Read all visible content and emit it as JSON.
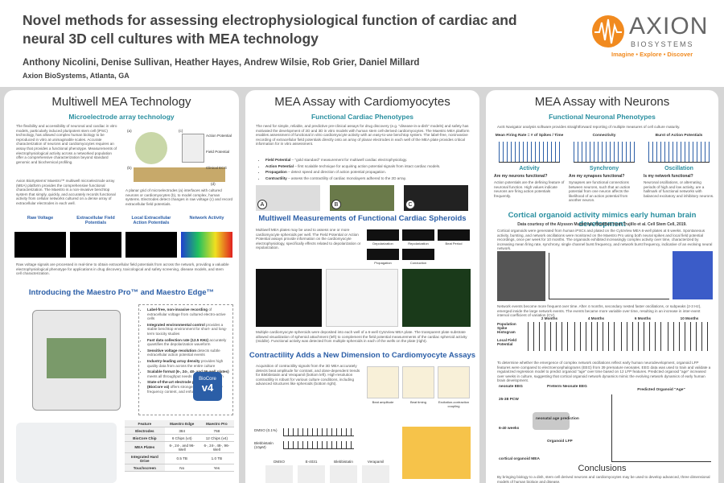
{
  "header": {
    "title": "Novel methods for assessing electrophysiological function of cardiac and neural 3D cell cultures with MEA technology",
    "authors": "Anthony Nicolini, Denise Sullivan, Heather Hayes, Andrew Wilsie, Rob Grier, Daniel Millard",
    "affiliation": "Axion BioSystems, Atlanta, GA",
    "logo_name": "AXION",
    "logo_sub": "BIOSYSTEMS",
    "tagline": "Imagine • Explore • Discover"
  },
  "col1": {
    "heading": "Multiwell MEA Technology",
    "sub": "Microelectrode array technology",
    "p1": "The flexibility and accessibility of neuronal and cardiac in vitro models, particularly induced pluripotent stem cell (iPSC) technology, has allowed complex human biology to be reproduced in vitro at unimaginable scales. Accurate characterization of neurons and cardiomyocytes requires an assay that provides a functional phenotype. Measurements of electrophysiological activity across a networked population offer a comprehensive characterization beyond standard genomic and biochemical profiling.",
    "p2": "Axion BioSystems' Maestro™ multiwell microelectrode array (MEA) platform provides the comprehensive functional characterization. The Maestro is a non-invasive benchtop system that simply, quickly, and accurately records functional activity from cellular networks cultured on a dense array of extracellular electrodes in each well.",
    "fig_labels": [
      "(a)",
      "(b)",
      "(c)",
      "(d)",
      "Action Potential",
      "Field Potential",
      "Clinical ECG"
    ],
    "fig_caption": "A planar grid of microelectrodes (a) interfaces with cultured neurons or cardiomyocytes (b), to model complex, human systems. Electrodes detect changes in raw voltage (c) and record extracellular field potentials.",
    "panels": [
      "Raw Voltage",
      "Extracellular Field Potentials",
      "Local Extracellular Action Potentials",
      "Network Activity"
    ],
    "panel_caption": "Raw voltage signals are processed in real-time to obtain extracellular field potentials from across the network, providing a valuable electrophysiological phenotype for applications in drug discovery, toxicological and safety screening, disease models, and stem cell characterization.",
    "maestro_heading": "Introducing the Maestro Pro™ and Maestro Edge™",
    "bullets": [
      {
        "lead": "Label-free, non-invasive recording",
        "text": " of extracellular voltage from cultured electro-active cells"
      },
      {
        "lead": "Integrated environmental control",
        "text": " provides a stable benchtop environment for short- and long-term toxicity studies"
      },
      {
        "lead": "Fast data collection rate (12.5 KHz)",
        "text": " accurately quantifies the depolarization waveform"
      },
      {
        "lead": "Sensitive voltage resolution",
        "text": " detects subtle extracellular action potential events"
      },
      {
        "lead": "Industry-leading array density",
        "text": " provides high quality data from across the entire culture"
      },
      {
        "lead": "Scalable format (6-, 24-, 48- and 96-well plates)",
        "text": " meets all throughput needs on a single system"
      },
      {
        "lead": "State-of-the-art electrode processing chip (BioCore v4)",
        "text": " offers stronger signals, ultra-low frequency content, and enhanced flexibility"
      }
    ],
    "badge": [
      "BioCore",
      "v4"
    ],
    "table": {
      "header": [
        "Feature",
        "Maestro Edge",
        "Maestro Pro"
      ],
      "rows": [
        [
          "Electrodes",
          "384",
          "768"
        ],
        [
          "BioCore Chip",
          "6 Chips (v4)",
          "12 Chips (v4)"
        ],
        [
          "MEA Plates",
          "6-, 24-, and 96-Well",
          "6-, 24-, 48-, 96-Well"
        ],
        [
          "Integrated Hard Drive",
          "0.5 TB",
          "1.0 TB"
        ],
        [
          "Touchscreen",
          "No",
          "Yes"
        ]
      ]
    }
  },
  "col2": {
    "heading": "MEA Assay with Cardiomyocytes",
    "sub": "Functional Cardiac Phenotypes",
    "p1": "The need for simple, reliable, and predictive pre-clinical assays for drug discovery (e.g. \"disease-in-a-dish\" models) and safety has motivated the development of 2D and 3D in vitro models with human stem cell-derived cardiomyocytes. The Maestro MEA platform enables assessment of functional in vitro cardiomyocyte activity with an easy-to-use benchtop system. The label-free, noninvasive recording of extracellular field potentials directly onto an array of planar electrodes in each well of the MEA plate provides critical information for in vitro assessment.",
    "bullets": [
      {
        "lead": "Field Potential",
        "text": " – \"gold standard\" measurement for multiwell cardiac electrophysiology."
      },
      {
        "lead": "Action Potential",
        "text": " – first scalable technique for acquiring action potential signals from intact cardiac models."
      },
      {
        "lead": "Propagation",
        "text": " – detect speed and direction of action potential propagation."
      },
      {
        "lead": "Contractility",
        "text": " – assess the contractility of cardiac monolayers adhered to the 2D array."
      }
    ],
    "img_labels": [
      "A",
      "B",
      "C"
    ],
    "spheroid_heading": "Multiwell Measurements of Functional Cardiac Spheroids",
    "p2": "Multiwell MEA plates may be used to assess one or more cardiomyocyte spheroids per well. The Field Potential or Action Potential assays provide information on the cardiomyocyte electrophysiology, specifically effects related to depolarization or repolarization.",
    "mini_labels": [
      "Depolarization",
      "Repolarization",
      "Beat Period",
      "Propagation",
      "Conduction"
    ],
    "spheroid_caption": "Multiple cardiomyocyte spheroids were deposited into each well of a 6-well CytoView MEA plate. The transparent plate substrate allowed visualization of spheroid attachment (left) to complement the field potential measurements of the cardiac spheroid activity (middle). Functional activity was detected from multiple spheroids in each of the wells on the plate (right).",
    "contract_heading": "Contractility Adds a New Dimension to Cardiomyocyte Assays",
    "p3": "Acquisition of contractility signals from the 3D MEA accurately detects beat amplitude for contrast, and dose-dependent trends for Blebbistatin and Verapamil (bottom left). High-resolution contractility is robust for various culture conditions, including advanced structures like spheroids (bottom right).",
    "contract_labels": [
      "Beat amplitude",
      "Beat timing",
      "Excitation-contraction coupling"
    ],
    "trace_labels": [
      "DMSO (0.1%)",
      "Blebbistatin (10µM)"
    ],
    "bar_labels": [
      "DMSO",
      "E-4031",
      "Blebbistatin",
      "Verapamil"
    ]
  },
  "col3": {
    "heading": "MEA Assay with Neurons",
    "sub": "Functional Neuronal Phenotypes",
    "intro": "AxIS Navigator analysis software provides straightforward reporting of multiple measures of cell culture maturity.",
    "metrics": [
      "Mean Firing Rate = # of Spikes / Time",
      "Connectivity",
      "Burst of Action Potentials"
    ],
    "phenotypes": [
      {
        "name": "Activity",
        "question": "Are my neurons functional?",
        "text": "Action potentials are the defining feature of neuronal function. High values indicate neurons are firing action potentials frequently."
      },
      {
        "name": "Synchrony",
        "question": "Are my synapses functional?",
        "text": "Synapses are functional connections between neurons, such that an action potential from one neuron affects the likelihood of an action potential from another neuron."
      },
      {
        "name": "Oscillation",
        "question": "Is my network functional?",
        "text": "Neuronal oscillations, or alternating periods of high and low activity, are a hallmark of functional networks with balanced excitatory and inhibitory neurons."
      }
    ],
    "organoid_heading": "Cortical organoid activity mimics early human brain development",
    "courtesy": "Data courtesy of the Alysson Muotri lab. Modified from Trujillo et al. Cell Stem Cell, 2019.",
    "p1": "Cortical organoids were generated from human iPSCs and plated on the CytoView MEA 6-well plates at 6 weeks. Spontaneous activity, bursting, and network oscillations were monitored on the Maestro Pro using both neural spikes and local field potential recordings, once per week for 10 months. The organoids exhibited increasingly complex activity over time, characterized by increasing mean firing rate, synchrony, single channel burst frequency, and network burst frequency, indicative of an evolving neural network.",
    "p2": "Network events become more frequent over time. After 4 months, secondary nested faster oscillations, or subpeaks (2-3 Hz), emerged inside the large network events. The events became more variable over time, resulting in an increase in inter-event interval coefficient of variation (CV).",
    "row_labels": [
      "Population Spike Histogram",
      "Local Field Potential"
    ],
    "months": [
      "2 Months",
      "4 Months",
      "6 Months",
      "10 Months"
    ],
    "p3": "To determine whether the emergence of complex network oscillations reflect early human neurodevelopment, organoid LFP features were compared to electroencephalograms (EEG) from 39 premature neonates. EEG data was used to train and validate a regularized regression model to predict organoid \"age\" over time based on 12 LFP features. Predicted organoid \"age\" increased over weeks in culture, suggesting that cortical organoid network dynamics mimic the evolving network dynamics of early human brain development.",
    "diagram": [
      "neonate EEG",
      "Preterm Neonate EEG",
      "25-38 PCW",
      "6-40 weeks",
      "neonatal age prediction",
      "cortical organoid MEA",
      "Organoid LFP",
      "Predicted Organoid \"Age\""
    ],
    "conclusions_heading": "Conclusions",
    "conclusions": "By bringing biology to a dish, stem cell derived neurons and cardiomyocytes may be used to develop advanced, three dimensional models of human biology and disease."
  }
}
